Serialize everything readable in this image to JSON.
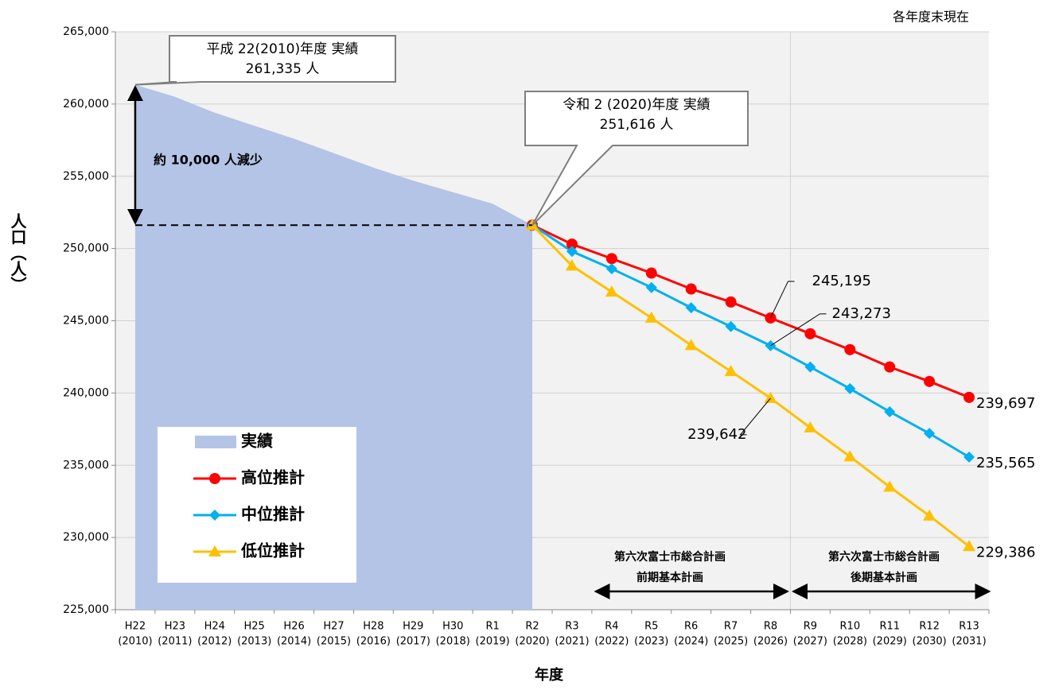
{
  "chart_data": {
    "type": "line",
    "x_label": "年度",
    "y_label": "人口（人）",
    "categories": [
      "H22",
      "H23",
      "H24",
      "H25",
      "H26",
      "H27",
      "H28",
      "H29",
      "H30",
      "R1",
      "R2",
      "R3",
      "R4",
      "R5",
      "R6",
      "R7",
      "R8",
      "R9",
      "R10",
      "R11",
      "R12",
      "R13"
    ],
    "category_years": [
      "(2010)",
      "(2011)",
      "(2012)",
      "(2013)",
      "(2014)",
      "(2015)",
      "(2016)",
      "(2017)",
      "(2018)",
      "(2019)",
      "(2020)",
      "(2021)",
      "(2022)",
      "(2023)",
      "(2024)",
      "(2025)",
      "(2026)",
      "(2027)",
      "(2028)",
      "(2029)",
      "(2030)",
      "(2031)"
    ],
    "series": [
      {
        "name": "実績",
        "color": "#b4c4e6",
        "fill": true,
        "marker": null,
        "values": [
          261335,
          260500,
          259400,
          258500,
          257600,
          256600,
          255600,
          254700,
          253900,
          253100,
          251616,
          null,
          null,
          null,
          null,
          null,
          null,
          null,
          null,
          null,
          null,
          null
        ],
        "value_labels": [
          null,
          null,
          null,
          null,
          null,
          null,
          null,
          null,
          null,
          null,
          null,
          null,
          null,
          null,
          null,
          null,
          null,
          null,
          null,
          null,
          null,
          null
        ]
      },
      {
        "name": "高位推計",
        "color": "#ff0000",
        "fill": false,
        "marker": "circle",
        "values": [
          null,
          null,
          null,
          null,
          null,
          null,
          null,
          null,
          null,
          null,
          251616,
          250300,
          249300,
          248300,
          247200,
          246300,
          245195,
          244100,
          243000,
          241800,
          240800,
          239697
        ],
        "value_labels": [
          null,
          null,
          null,
          null,
          null,
          null,
          null,
          null,
          null,
          null,
          null,
          null,
          null,
          null,
          null,
          null,
          "245,195",
          null,
          null,
          null,
          null,
          "239,697"
        ]
      },
      {
        "name": "中位推計",
        "color": "#00b0f0",
        "fill": false,
        "marker": "diamond",
        "values": [
          null,
          null,
          null,
          null,
          null,
          null,
          null,
          null,
          null,
          null,
          251616,
          249800,
          248600,
          247300,
          245900,
          244600,
          243273,
          241800,
          240300,
          238700,
          237200,
          235565
        ],
        "value_labels": [
          null,
          null,
          null,
          null,
          null,
          null,
          null,
          null,
          null,
          null,
          null,
          null,
          null,
          null,
          null,
          null,
          "243,273",
          null,
          null,
          null,
          null,
          "235,565"
        ]
      },
      {
        "name": "低位推計",
        "color": "#ffc000",
        "fill": false,
        "marker": "triangle",
        "values": [
          null,
          null,
          null,
          null,
          null,
          null,
          null,
          null,
          null,
          null,
          251616,
          248800,
          247000,
          245200,
          243300,
          241500,
          239642,
          237600,
          235600,
          233500,
          231500,
          229386
        ],
        "value_labels": [
          null,
          null,
          null,
          null,
          null,
          null,
          null,
          null,
          null,
          null,
          null,
          null,
          null,
          null,
          null,
          null,
          "239,642",
          null,
          null,
          null,
          null,
          "229,386"
        ]
      }
    ],
    "ylim": [
      225000,
      265000
    ],
    "yticks": [
      {
        "value": 225000,
        "label": "225,000"
      },
      {
        "value": 230000,
        "label": "230,000"
      },
      {
        "value": 235000,
        "label": "235,000"
      },
      {
        "value": 240000,
        "label": "240,000"
      },
      {
        "value": 245000,
        "label": "245,000"
      },
      {
        "value": 250000,
        "label": "250,000"
      },
      {
        "value": 255000,
        "label": "255,000"
      },
      {
        "value": 260000,
        "label": "260,000"
      },
      {
        "value": 265000,
        "label": "265,000"
      }
    ],
    "grid": true,
    "legend": "lower-left",
    "annotations": {
      "note": "各年度末現在",
      "callout_2010": [
        "平成 22(2010)年度  実績",
        "261,335 人"
      ],
      "callout_2020": [
        "令和 2 (2020)年度  実績",
        "251,616 人"
      ],
      "decrease": "約 10,000 人減少",
      "plan_name": "第六次富士市総合計画",
      "plan_first": "前期基本計画",
      "plan_second": "後期基本計画"
    }
  }
}
